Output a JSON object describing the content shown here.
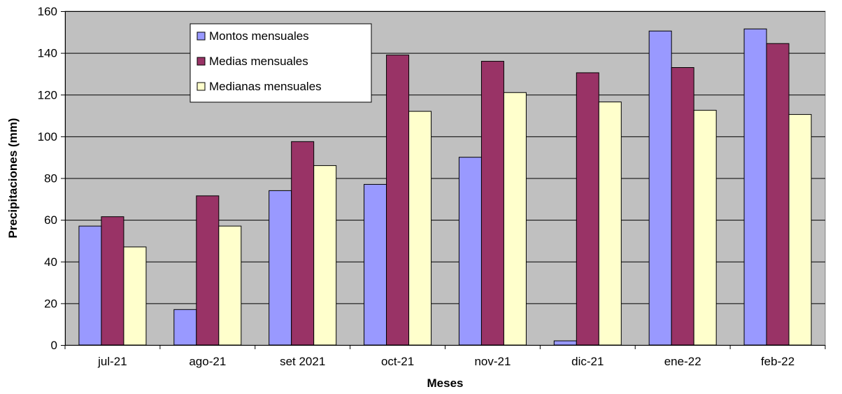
{
  "chart_data": {
    "type": "bar",
    "title": "",
    "xlabel": "Meses",
    "ylabel": "Precipitaciones (mm)",
    "ylim": [
      0,
      160
    ],
    "yticks": [
      0,
      20,
      40,
      60,
      80,
      100,
      120,
      140,
      160
    ],
    "grid": true,
    "legend_position": "top-left",
    "categories": [
      "jul-21",
      "ago-21",
      "set 2021",
      "oct-21",
      "nov-21",
      "dic-21",
      "ene-22",
      "feb-22"
    ],
    "series": [
      {
        "name": "Montos mensuales",
        "color": "#9999ff",
        "values": [
          57,
          17,
          74,
          77,
          90,
          2,
          150.5,
          151.5
        ]
      },
      {
        "name": "Medias mensuales",
        "color": "#993366",
        "values": [
          61.5,
          71.5,
          97.5,
          139,
          136,
          130.5,
          133,
          144.5
        ]
      },
      {
        "name": "Medianas mensuales",
        "color": "#ffffcc",
        "values": [
          47,
          57,
          86,
          112,
          121,
          116.5,
          112.5,
          110.5
        ]
      }
    ],
    "plot_background": "#c0c0c0"
  }
}
